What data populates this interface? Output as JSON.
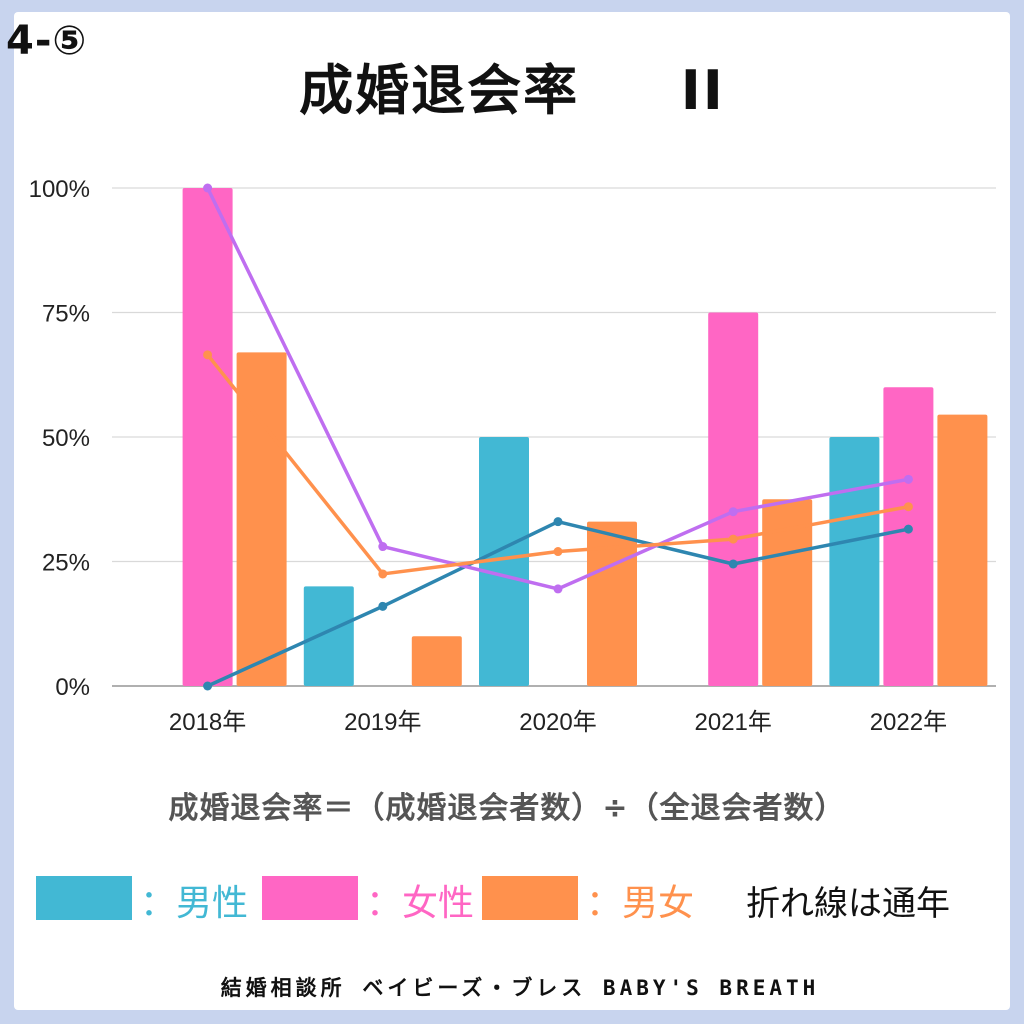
{
  "header": {
    "section_number": "4-⑤",
    "title": "成婚退会率",
    "title_suffix": "II"
  },
  "formula": "成婚退会率＝（成婚退会者数）÷（全退会者数）",
  "legend": {
    "items": [
      {
        "label": "：男性",
        "color": "#42b8d4"
      },
      {
        "label": "：女性",
        "color": "#ff66c4"
      },
      {
        "label": "：男女",
        "color": "#ff914d"
      }
    ],
    "note": "折れ線は通年"
  },
  "footer": "結婚相談所 ベイビーズ・ブレス BABY'S BREATH",
  "colors": {
    "male": "#42b8d4",
    "female": "#ff66c4",
    "both": "#ff914d",
    "male_line": "#2e86b0",
    "female_line": "#bf6ef0",
    "both_line": "#ff914d",
    "grid": "#d9d9d9",
    "frame": "#c8d4ee"
  },
  "chart_data": {
    "type": "bar",
    "categories": [
      "2018年",
      "2019年",
      "2020年",
      "2021年",
      "2022年"
    ],
    "y_ticks": [
      "0%",
      "25%",
      "50%",
      "75%",
      "100%"
    ],
    "ylim": [
      0,
      100
    ],
    "grid": true,
    "series": [
      {
        "name": "男性",
        "values": [
          null,
          20,
          50,
          null,
          50
        ]
      },
      {
        "name": "女性",
        "values": [
          100,
          null,
          null,
          75,
          60
        ]
      },
      {
        "name": "男女",
        "values": [
          67,
          10,
          33,
          37.5,
          54.5
        ]
      }
    ],
    "lines": [
      {
        "name": "男性",
        "values": [
          0,
          16,
          33,
          24.5,
          31.5
        ]
      },
      {
        "name": "女性",
        "values": [
          100,
          28,
          19.5,
          35,
          41.5
        ]
      },
      {
        "name": "男女",
        "values": [
          66.5,
          22.5,
          27,
          29.5,
          36
        ]
      }
    ]
  }
}
